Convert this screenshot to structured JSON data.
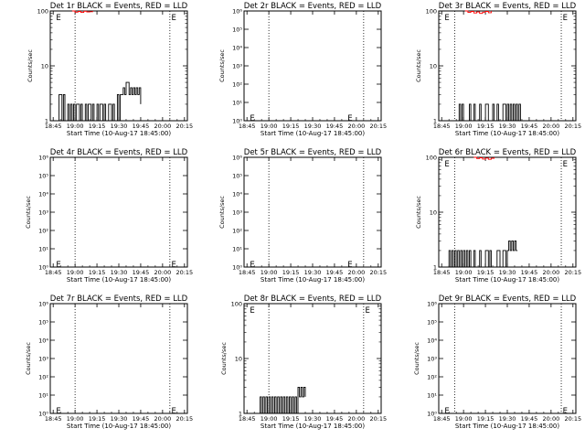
{
  "chart_data": [
    {
      "type": "line",
      "title": "Det 1r BLACK = Events, RED = LLD",
      "xlabel": "Start Time (10-Aug-17 18:45:00)",
      "ylabel": "Counts/sec",
      "scale": "log",
      "ylim": [
        1,
        100
      ],
      "yticks": [
        "1",
        "10",
        "100"
      ],
      "xlim": [
        -2,
        92
      ],
      "xticks": [
        "18:45",
        "19:00",
        "19:15",
        "19:30",
        "19:45",
        "20:00",
        "20:15"
      ],
      "xtick_values": [
        0,
        15,
        30,
        45,
        60,
        75,
        90
      ],
      "vlines": [
        15,
        80
      ],
      "marker_label": "E",
      "markers": [
        {
          "x": 2,
          "y": 80
        },
        {
          "x": 81,
          "y": 80
        }
      ],
      "series": [
        {
          "color": "#000000",
          "x": [
            2,
            4,
            6,
            7,
            8,
            10,
            11,
            12,
            13,
            14,
            15,
            16,
            18,
            19,
            20,
            22,
            23,
            24,
            26,
            27,
            28,
            30,
            31,
            32,
            34,
            35,
            36,
            38,
            40,
            41,
            42,
            44,
            45,
            46,
            48,
            49,
            50,
            52,
            53,
            54,
            55,
            56,
            57,
            58,
            59,
            60
          ],
          "y": [
            1,
            3,
            1,
            3,
            1,
            2,
            1,
            2,
            1,
            2,
            1,
            2,
            1,
            2,
            1,
            2,
            1,
            2,
            1,
            2,
            1,
            2,
            1,
            2,
            1,
            2,
            1,
            2,
            1,
            2,
            1,
            3,
            1,
            3,
            4,
            3,
            5,
            3,
            4,
            3,
            4,
            3,
            4,
            3,
            4,
            2
          ]
        },
        {
          "color": "#ff0000",
          "x": [
            13,
            15,
            17,
            19,
            21,
            23,
            25,
            27
          ],
          "y": [
            100,
            95,
            98,
            94,
            99,
            96,
            97,
            100
          ]
        }
      ]
    },
    {
      "type": "line",
      "title": "Det 2r BLACK = Events, RED = LLD",
      "xlabel": "Start Time (10-Aug-17 18:45:00)",
      "ylabel": "Counts/sec",
      "scale": "log",
      "ylim": [
        1,
        1000000
      ],
      "yticks": [
        "10⁰",
        "10¹",
        "10²",
        "10³",
        "10⁴",
        "10⁵",
        "10⁶"
      ],
      "xlim": [
        -2,
        92
      ],
      "xticks": [
        "18:45",
        "19:00",
        "19:15",
        "19:30",
        "19:45",
        "20:00",
        "20:15"
      ],
      "xtick_values": [
        0,
        15,
        30,
        45,
        60,
        75,
        90
      ],
      "vlines": [
        15,
        80
      ],
      "marker_label": "E",
      "markers": [
        {
          "x": 2,
          "y": 1.6
        },
        {
          "x": 69,
          "y": 1.6
        }
      ],
      "series": []
    },
    {
      "type": "line",
      "title": "Det 3r BLACK = Events, RED = LLD",
      "xlabel": "Start Time (10-Aug-17 18:45:00)",
      "ylabel": "Counts/sec",
      "scale": "log",
      "ylim": [
        1,
        100
      ],
      "yticks": [
        "1",
        "10",
        "100"
      ],
      "xlim": [
        -2,
        92
      ],
      "xticks": [
        "18:45",
        "19:00",
        "19:15",
        "19:30",
        "19:45",
        "20:00",
        "20:15"
      ],
      "xtick_values": [
        0,
        15,
        30,
        45,
        60,
        75,
        90
      ],
      "vlines": [
        9,
        82
      ],
      "marker_label": "E",
      "markers": [
        {
          "x": 2,
          "y": 80
        },
        {
          "x": 83,
          "y": 80
        }
      ],
      "series": [
        {
          "color": "#000000",
          "x": [
            10,
            12,
            13,
            14,
            15,
            16,
            18,
            19,
            20,
            22,
            23,
            24,
            26,
            27,
            28,
            30,
            32,
            34,
            35,
            36,
            38,
            39,
            40,
            42,
            44,
            45,
            46,
            47,
            48,
            49,
            50,
            51,
            52,
            53,
            54,
            55
          ],
          "y": [
            1,
            2,
            1,
            2,
            1,
            1,
            1,
            2,
            1,
            2,
            1,
            1,
            2,
            1,
            1,
            2,
            1,
            1,
            2,
            1,
            2,
            1,
            1,
            2,
            1,
            2,
            1,
            2,
            1,
            2,
            1,
            2,
            1,
            2,
            1,
            1
          ]
        },
        {
          "color": "#ff0000",
          "x": [
            16,
            18,
            20,
            22,
            24,
            26,
            28,
            30,
            32,
            34
          ],
          "y": [
            100,
            94,
            98,
            92,
            96,
            90,
            95,
            98,
            93,
            100
          ]
        }
      ]
    },
    {
      "type": "line",
      "title": "Det 4r BLACK = Events, RED = LLD",
      "xlabel": "Start Time (10-Aug-17 18:45:00)",
      "ylabel": "Counts/sec",
      "scale": "log",
      "ylim": [
        1,
        1000000
      ],
      "yticks": [
        "10⁰",
        "10¹",
        "10²",
        "10³",
        "10⁴",
        "10⁵",
        "10⁶"
      ],
      "xlim": [
        -2,
        92
      ],
      "xticks": [
        "18:45",
        "19:00",
        "19:15",
        "19:30",
        "19:45",
        "20:00",
        "20:15"
      ],
      "xtick_values": [
        0,
        15,
        30,
        45,
        60,
        75,
        90
      ],
      "vlines": [
        15,
        80
      ],
      "marker_label": "E",
      "markers": [
        {
          "x": 2,
          "y": 1.6
        },
        {
          "x": 81,
          "y": 1.6
        }
      ],
      "series": []
    },
    {
      "type": "line",
      "title": "Det 5r BLACK = Events, RED = LLD",
      "xlabel": "Start Time (10-Aug-17 18:45:00)",
      "ylabel": "Counts/sec",
      "scale": "log",
      "ylim": [
        1,
        1000000
      ],
      "yticks": [
        "10⁰",
        "10¹",
        "10²",
        "10³",
        "10⁴",
        "10⁵",
        "10⁶"
      ],
      "xlim": [
        -2,
        92
      ],
      "xticks": [
        "18:45",
        "19:00",
        "19:15",
        "19:30",
        "19:45",
        "20:00",
        "20:15"
      ],
      "xtick_values": [
        0,
        15,
        30,
        45,
        60,
        75,
        90
      ],
      "vlines": [
        15,
        80
      ],
      "marker_label": "E",
      "markers": [
        {
          "x": 2,
          "y": 1.6
        },
        {
          "x": 69,
          "y": 1.6
        }
      ],
      "series": []
    },
    {
      "type": "line",
      "title": "Det 6r BLACK = Events, RED = LLD",
      "xlabel": "Start Time (10-Aug-17 18:45:00)",
      "ylabel": "Counts/sec",
      "scale": "log",
      "ylim": [
        1,
        100
      ],
      "yticks": [
        "1",
        "10",
        "100"
      ],
      "xlim": [
        -2,
        92
      ],
      "xticks": [
        "18:45",
        "19:00",
        "19:15",
        "19:30",
        "19:45",
        "20:00",
        "20:15"
      ],
      "xtick_values": [
        0,
        15,
        30,
        45,
        60,
        75,
        90
      ],
      "vlines": [
        9,
        82
      ],
      "marker_label": "E",
      "markers": [
        {
          "x": 2,
          "y": 80
        },
        {
          "x": 83,
          "y": 80
        }
      ],
      "series": [
        {
          "color": "#000000",
          "x": [
            4,
            5,
            6,
            7,
            8,
            9,
            10,
            11,
            12,
            13,
            14,
            15,
            16,
            17,
            18,
            19,
            20,
            22,
            23,
            24,
            26,
            27,
            28,
            30,
            32,
            33,
            34,
            36,
            38,
            40,
            42,
            44,
            45,
            46,
            47,
            48,
            49,
            50,
            51,
            52
          ],
          "y": [
            1,
            2,
            1,
            2,
            1,
            2,
            1,
            2,
            1,
            2,
            1,
            2,
            1,
            2,
            1,
            2,
            1,
            2,
            1,
            1,
            2,
            1,
            1,
            2,
            1,
            2,
            1,
            1,
            2,
            1,
            2,
            1,
            2,
            3,
            2,
            3,
            2,
            3,
            2,
            2
          ]
        },
        {
          "color": "#ff0000",
          "x": [
            22,
            24,
            26,
            28,
            30,
            32,
            34,
            36
          ],
          "y": [
            100,
            95,
            98,
            93,
            97,
            92,
            96,
            100
          ]
        }
      ]
    },
    {
      "type": "line",
      "title": "Det 7r BLACK = Events, RED = LLD",
      "xlabel": "Start Time (10-Aug-17 18:45:00)",
      "ylabel": "Counts/sec",
      "scale": "log",
      "ylim": [
        1,
        1000000
      ],
      "yticks": [
        "10⁰",
        "10¹",
        "10²",
        "10³",
        "10⁴",
        "10⁵",
        "10⁶"
      ],
      "xlim": [
        -2,
        92
      ],
      "xticks": [
        "18:45",
        "19:00",
        "19:15",
        "19:30",
        "19:45",
        "20:00",
        "20:15"
      ],
      "xtick_values": [
        0,
        15,
        30,
        45,
        60,
        75,
        90
      ],
      "vlines": [
        15,
        80
      ],
      "marker_label": "E",
      "markers": [
        {
          "x": 2,
          "y": 1.6
        },
        {
          "x": 81,
          "y": 1.6
        }
      ],
      "series": []
    },
    {
      "type": "line",
      "title": "Det 8r BLACK = Events, RED = LLD",
      "xlabel": "Start Time (10-Aug-17 18:45:00)",
      "ylabel": "Counts/sec",
      "scale": "log",
      "ylim": [
        1,
        100
      ],
      "yticks": [
        "1",
        "10",
        "100"
      ],
      "xlim": [
        -2,
        92
      ],
      "xticks": [
        "18:45",
        "19:00",
        "19:15",
        "19:30",
        "19:45",
        "20:00",
        "20:15"
      ],
      "xtick_values": [
        0,
        15,
        30,
        45,
        60,
        75,
        90
      ],
      "vlines": [
        15,
        80
      ],
      "marker_label": "E",
      "markers": [
        {
          "x": 2,
          "y": 80
        },
        {
          "x": 81,
          "y": 80
        }
      ],
      "series": [
        {
          "color": "#000000",
          "x": [
            8,
            9,
            10,
            11,
            12,
            13,
            14,
            15,
            16,
            17,
            18,
            19,
            20,
            21,
            22,
            23,
            24,
            25,
            26,
            27,
            28,
            29,
            30,
            31,
            32,
            33,
            34,
            35,
            36,
            37,
            38,
            39,
            40
          ],
          "y": [
            1,
            2,
            1,
            2,
            1,
            2,
            1,
            2,
            1,
            2,
            1,
            2,
            1,
            2,
            1,
            2,
            1,
            2,
            1,
            2,
            1,
            2,
            1,
            2,
            1,
            2,
            1,
            3,
            2,
            3,
            2,
            3,
            2
          ]
        }
      ]
    },
    {
      "type": "line",
      "title": "Det 9r BLACK = Events, RED = LLD",
      "xlabel": "Start Time (10-Aug-17 18:45:00)",
      "ylabel": "Counts/sec",
      "scale": "log",
      "ylim": [
        1,
        1000000
      ],
      "yticks": [
        "10⁰",
        "10¹",
        "10²",
        "10³",
        "10⁴",
        "10⁵",
        "10⁶"
      ],
      "xlim": [
        -2,
        92
      ],
      "xticks": [
        "18:45",
        "19:00",
        "19:15",
        "19:30",
        "19:45",
        "20:00",
        "20:15"
      ],
      "xtick_values": [
        0,
        15,
        30,
        45,
        60,
        75,
        90
      ],
      "vlines": [
        9,
        82
      ],
      "marker_label": "E",
      "markers": [
        {
          "x": 2,
          "y": 1.6
        },
        {
          "x": 83,
          "y": 1.6
        }
      ],
      "series": []
    }
  ]
}
